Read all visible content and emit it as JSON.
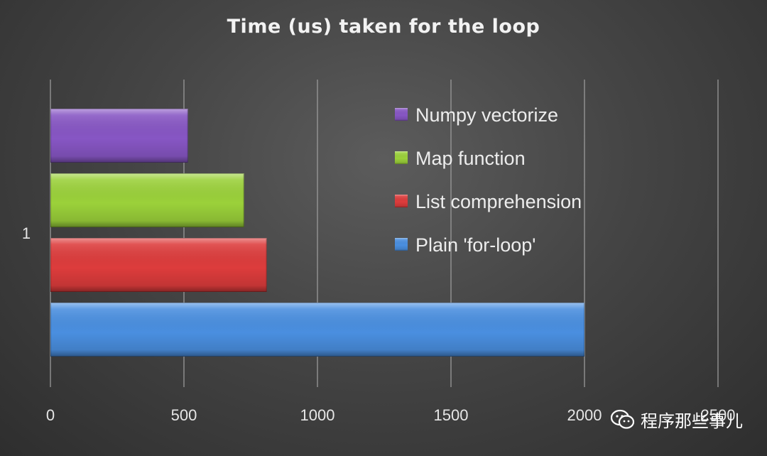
{
  "chart_data": {
    "type": "bar",
    "orientation": "horizontal",
    "title": "Time (us) taken for the loop",
    "categories": [
      "1"
    ],
    "xlim": [
      0,
      2500
    ],
    "x_ticks": [
      "0",
      "500",
      "1000",
      "1500",
      "2000",
      "2500"
    ],
    "grid": true,
    "legend_position": "right",
    "series": [
      {
        "name": "Plain 'for-loop'",
        "values": [
          2000
        ],
        "color": "#4a8fe0"
      },
      {
        "name": "List comprehension",
        "values": [
          810
        ],
        "color": "#dd3c3c"
      },
      {
        "name": "Map function",
        "values": [
          725
        ],
        "color": "#9bd13a"
      },
      {
        "name": "Numpy vectorize",
        "values": [
          515
        ],
        "color": "#8756c4"
      }
    ]
  },
  "watermark": {
    "icon": "wechat-icon",
    "text": "程序那些事儿"
  }
}
